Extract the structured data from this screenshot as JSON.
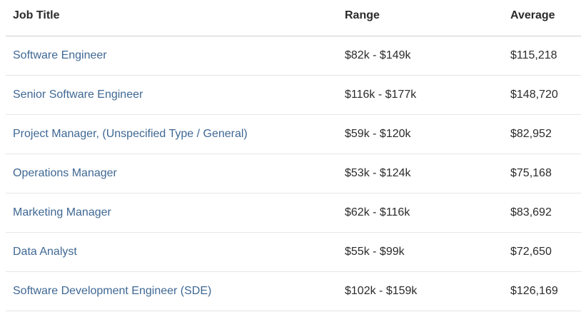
{
  "table": {
    "headers": {
      "job_title": "Job Title",
      "range": "Range",
      "average": "Average"
    },
    "rows": [
      {
        "title": "Software Engineer",
        "range": "$82k - $149k",
        "average": "$115,218"
      },
      {
        "title": "Senior Software Engineer",
        "range": "$116k - $177k",
        "average": "$148,720"
      },
      {
        "title": "Project Manager, (Unspecified Type / General)",
        "range": "$59k - $120k",
        "average": "$82,952"
      },
      {
        "title": "Operations Manager",
        "range": "$53k - $124k",
        "average": "$75,168"
      },
      {
        "title": "Marketing Manager",
        "range": "$62k - $116k",
        "average": "$83,692"
      },
      {
        "title": "Data Analyst",
        "range": "$55k - $99k",
        "average": "$72,650"
      },
      {
        "title": "Software Development Engineer (SDE)",
        "range": "$102k - $159k",
        "average": "$126,169"
      }
    ]
  },
  "colors": {
    "link": "#3f6894",
    "text": "#2b2b2b",
    "divider": "#e6e6e6",
    "header_divider": "#cfcfcf"
  }
}
